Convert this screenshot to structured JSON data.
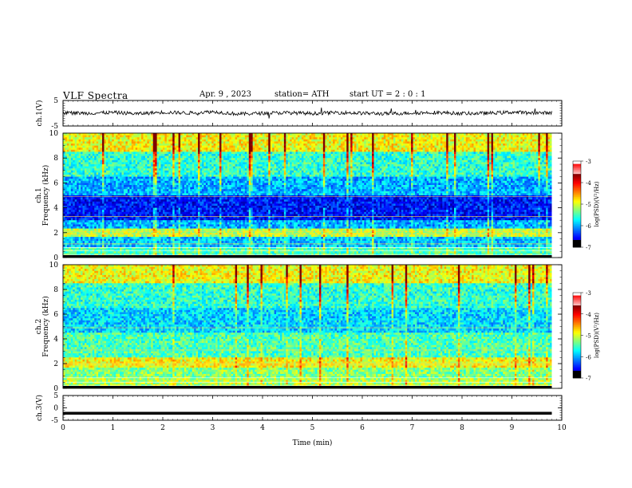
{
  "header": {
    "title": "VLF  Spectra",
    "date": "Apr. 9  , 2023",
    "station": "station= ATH",
    "start_ut": "start  UT  =   2  : 0   : 1"
  },
  "colors": {
    "spectrogram_low": "#000080",
    "spectrogram_mid": "#00c8ff",
    "spectrogram_high": "#ff0000",
    "trace": "#000000"
  },
  "chart_data": [
    {
      "type": "line",
      "ylabel": "ch.1(V)",
      "ylim": [
        -5,
        5
      ],
      "yticks": [
        5,
        -5
      ],
      "x": [
        0,
        0.5,
        1,
        1.5,
        2,
        2.5,
        3,
        3.5,
        4,
        4.5,
        5,
        5.5,
        6,
        6.5,
        7,
        7.5,
        8,
        8.5,
        9,
        9.5,
        9.8
      ],
      "y": [
        0.2,
        0.0,
        0.3,
        -0.2,
        0.4,
        0.1,
        0.6,
        -0.3,
        0.0,
        0.2,
        -0.1,
        0.3,
        0.0,
        -0.2,
        0.1,
        0.3,
        -0.1,
        0.0,
        0.4,
        0.1,
        0.2
      ],
      "grid": false
    },
    {
      "type": "heatmap",
      "ylabel": "ch.1\nFrequency  (kHz)",
      "ylim": [
        0,
        10
      ],
      "yticks": [
        0,
        2,
        4,
        6,
        8,
        10
      ],
      "xlim": [
        0,
        10
      ],
      "colorbar": {
        "label": "log(PSD)(V²/Hz)",
        "range": [
          -7,
          -3
        ],
        "ticks": [
          -3,
          -4,
          -5,
          -6,
          -7
        ]
      }
    },
    {
      "type": "heatmap",
      "ylabel": "ch.2\nFrequency  (kHz)",
      "ylim": [
        0,
        10
      ],
      "yticks": [
        0,
        2,
        4,
        6,
        8,
        10
      ],
      "xlim": [
        0,
        10
      ],
      "colorbar": {
        "label": "log(PSD)(V²/Hz)",
        "range": [
          -7,
          -3
        ],
        "ticks": [
          -3,
          -4,
          -5,
          -6,
          -7
        ]
      }
    },
    {
      "type": "line",
      "ylabel": "ch.3(V)",
      "ylim": [
        -5,
        5
      ],
      "yticks": [
        5,
        0,
        -5
      ],
      "x": [
        0,
        9.8
      ],
      "y": [
        -2.2,
        -2.2
      ],
      "xlabel": "Time  (min)",
      "xlim": [
        0,
        10
      ],
      "xticks": [
        0,
        1,
        2,
        3,
        4,
        5,
        6,
        7,
        8,
        9,
        10
      ],
      "grid": false
    }
  ]
}
